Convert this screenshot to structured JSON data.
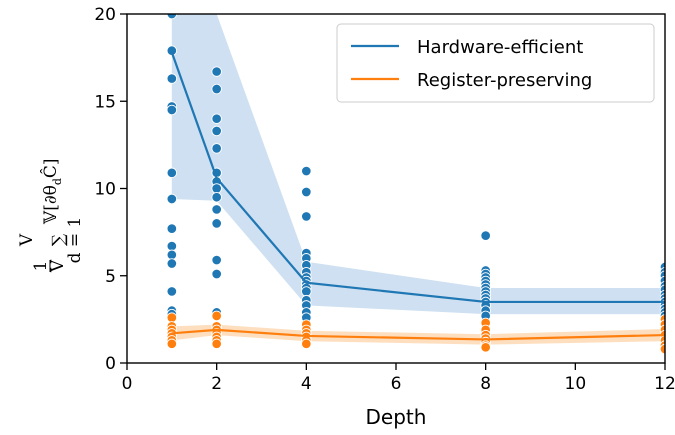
{
  "chart_data": {
    "type": "line",
    "xlabel": "Depth",
    "ylabel": "1/V Σ_{d=1}^{V} 𝕍[∂θ_d Ĉ]",
    "ylabel_parts": {
      "frac_num": "1",
      "frac_den": "V",
      "sum_top": "V",
      "sum_symbol": "∑",
      "sum_bottom": "d = 1",
      "body": "𝕍[∂θ",
      "body_sub": "d",
      "body_end": "Ĉ]"
    },
    "xlim": [
      0,
      12
    ],
    "ylim": [
      0,
      20
    ],
    "xticks": [
      "0",
      "2",
      "4",
      "6",
      "8",
      "10",
      "12"
    ],
    "yticks": [
      "0",
      "5",
      "10",
      "15",
      "20"
    ],
    "legend_position": "top-right",
    "x": [
      1,
      2,
      4,
      8,
      12
    ],
    "series": [
      {
        "name": "Hardware-efficient",
        "color": "#1f77b4",
        "band_color": "#c6dbef",
        "values": [
          17.8,
          10.6,
          4.6,
          3.5,
          3.5
        ],
        "band_low": [
          9.4,
          9.3,
          3.3,
          2.8,
          2.8
        ],
        "band_high": [
          20,
          20,
          5.8,
          4.3,
          4.3
        ],
        "points": {
          "1": [
            20.0,
            17.9,
            16.3,
            14.7,
            14.5,
            10.9,
            9.4,
            7.7,
            6.7,
            6.2,
            5.7,
            4.1,
            3.0,
            2.8
          ],
          "2": [
            16.7,
            15.7,
            14.0,
            13.3,
            12.3,
            10.9,
            10.4,
            10.0,
            9.5,
            8.8,
            8.0,
            5.9,
            5.1,
            2.9
          ],
          "4": [
            11.0,
            9.8,
            8.4,
            6.3,
            6.0,
            5.6,
            5.2,
            4.9,
            4.7,
            4.5,
            4.3,
            4.1,
            3.6,
            3.3,
            2.9,
            2.6
          ],
          "8": [
            7.3,
            5.3,
            5.1,
            4.9,
            4.7,
            4.5,
            4.3,
            4.1,
            3.9,
            3.7,
            3.5,
            3.3,
            3.0,
            2.7
          ],
          "12": [
            5.5,
            5.2,
            5.0,
            4.7,
            4.4,
            4.2,
            3.9,
            3.7,
            3.5,
            3.3,
            3.1,
            2.9,
            2.7
          ]
        }
      },
      {
        "name": "Register-preserving",
        "color": "#ff7f0e",
        "band_color": "#fdd9b5",
        "values": [
          1.7,
          1.9,
          1.55,
          1.35,
          1.6
        ],
        "band_low": [
          1.3,
          1.6,
          1.25,
          1.05,
          1.25
        ],
        "band_high": [
          2.1,
          2.2,
          1.85,
          1.65,
          1.95
        ],
        "points": {
          "1": [
            2.6,
            2.1,
            1.9,
            1.7,
            1.5,
            1.3,
            1.1
          ],
          "2": [
            2.7,
            2.1,
            1.9,
            1.7,
            1.5,
            1.3,
            1.1
          ],
          "4": [
            2.2,
            1.9,
            1.7,
            1.5,
            1.3,
            1.1
          ],
          "8": [
            2.3,
            1.9,
            1.6,
            1.4,
            1.2,
            1.0,
            0.9
          ],
          "12": [
            2.5,
            2.2,
            1.9,
            1.6,
            1.3,
            1.0,
            0.8
          ]
        }
      }
    ]
  }
}
